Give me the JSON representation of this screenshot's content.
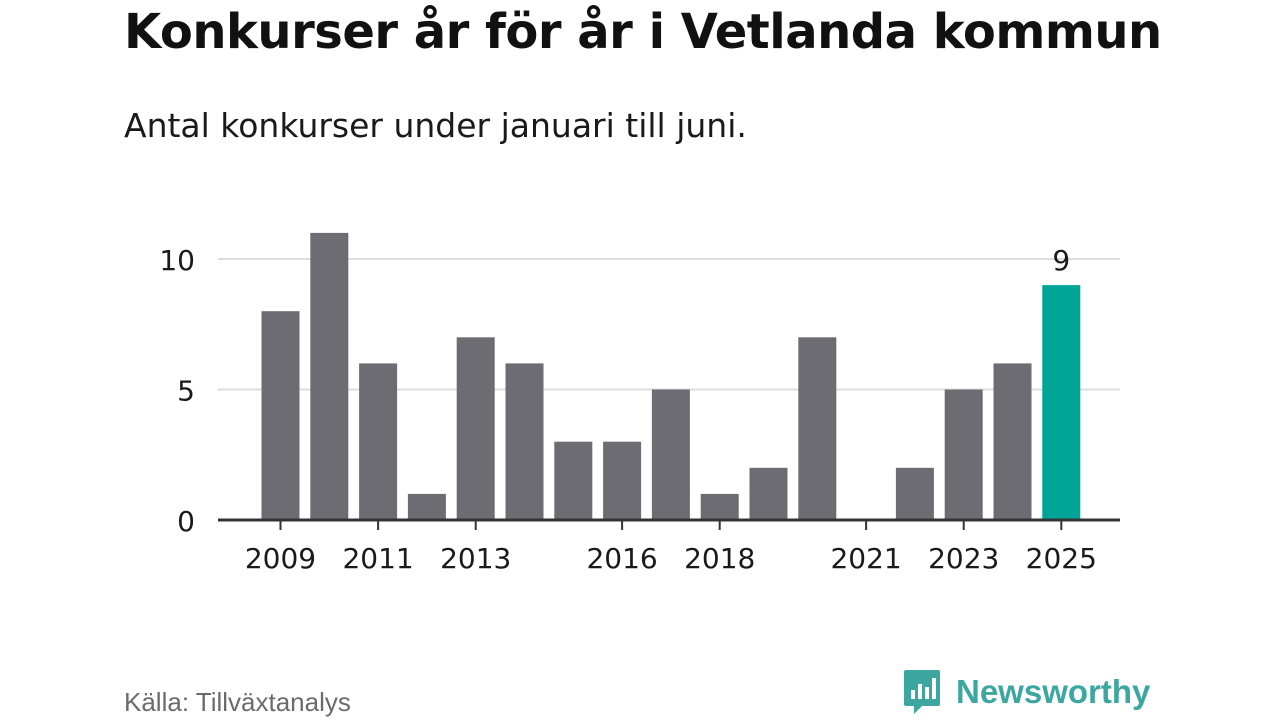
{
  "header": {
    "title": "Konkurser år för år i Vetlanda kommun",
    "subtitle": "Antal konkurser under januari till juni."
  },
  "footer": {
    "source": "Källa: Tillväxtanalys",
    "brand": "Newsworthy",
    "brand_icon": "newsworthy-logo-icon"
  },
  "colors": {
    "bar": "#6d6c73",
    "highlight": "#00a598",
    "grid": "#dddddd",
    "axis": "#333333",
    "text": "#1a1a1a",
    "brand": "#3ca6a0"
  },
  "chart_data": {
    "type": "bar",
    "categories": [
      "2009",
      "2010",
      "2011",
      "2012",
      "2013",
      "2014",
      "2015",
      "2016",
      "2017",
      "2018",
      "2019",
      "2020",
      "2021",
      "2022",
      "2023",
      "2024",
      "2025"
    ],
    "values": [
      8,
      11,
      6,
      1,
      7,
      6,
      3,
      3,
      5,
      1,
      2,
      7,
      0,
      2,
      5,
      6,
      9
    ],
    "x_tick_labels": [
      "2009",
      "2011",
      "2013",
      "2016",
      "2018",
      "2021",
      "2023",
      "2025"
    ],
    "y_ticks": [
      0,
      5,
      10
    ],
    "ylim": [
      0,
      11
    ],
    "highlight_category": "2025",
    "data_labels": [
      {
        "category": "2025",
        "text": "9"
      }
    ],
    "grid": true,
    "title": "Konkurser år för år i Vetlanda kommun",
    "subtitle": "Antal konkurser under januari till juni.",
    "xlabel": "",
    "ylabel": ""
  }
}
